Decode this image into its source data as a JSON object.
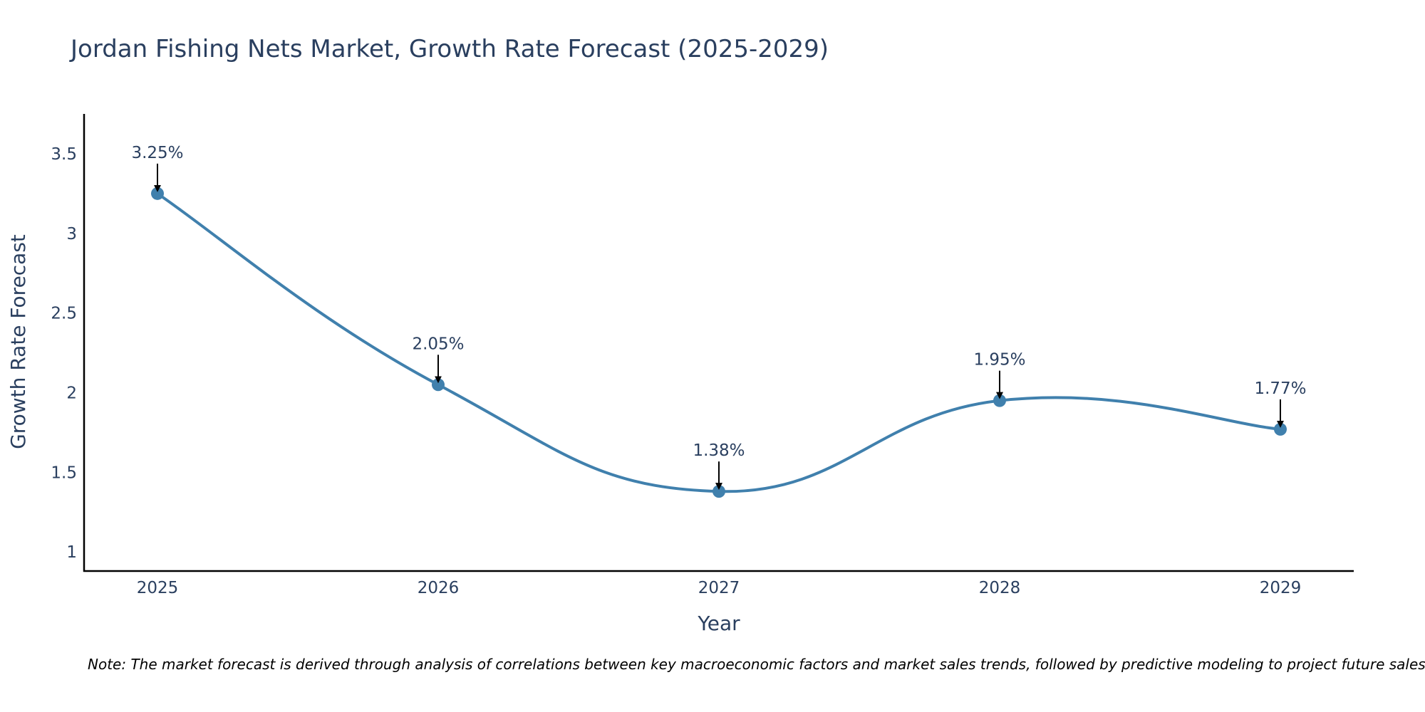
{
  "chart_data": {
    "type": "line",
    "title": "Jordan Fishing Nets Market, Growth Rate Forecast (2025-2029)",
    "xlabel": "Year",
    "ylabel": "Growth Rate Forecast",
    "categories": [
      "2025",
      "2026",
      "2027",
      "2028",
      "2029"
    ],
    "series": [
      {
        "name": "Growth Rate Forecast",
        "values": [
          3.25,
          2.05,
          1.38,
          1.95,
          1.77
        ],
        "color": "#4080ad"
      }
    ],
    "data_labels": [
      "3.25%",
      "2.05%",
      "1.38%",
      "1.95%",
      "1.77%"
    ],
    "y_ticks": [
      "1",
      "1.5",
      "2",
      "2.5",
      "3",
      "3.5"
    ],
    "ylim": [
      0.88,
      3.75
    ],
    "grid": false,
    "line_shape": "spline",
    "note": "Note: The market forecast is derived through analysis of correlations between key macroeconomic factors and market sales trends, followed by predictive modeling to project future sales."
  },
  "colors": {
    "text": "#2a3f5f",
    "axis": "#000000",
    "arrow": "#000000",
    "line": "#4080ad"
  }
}
